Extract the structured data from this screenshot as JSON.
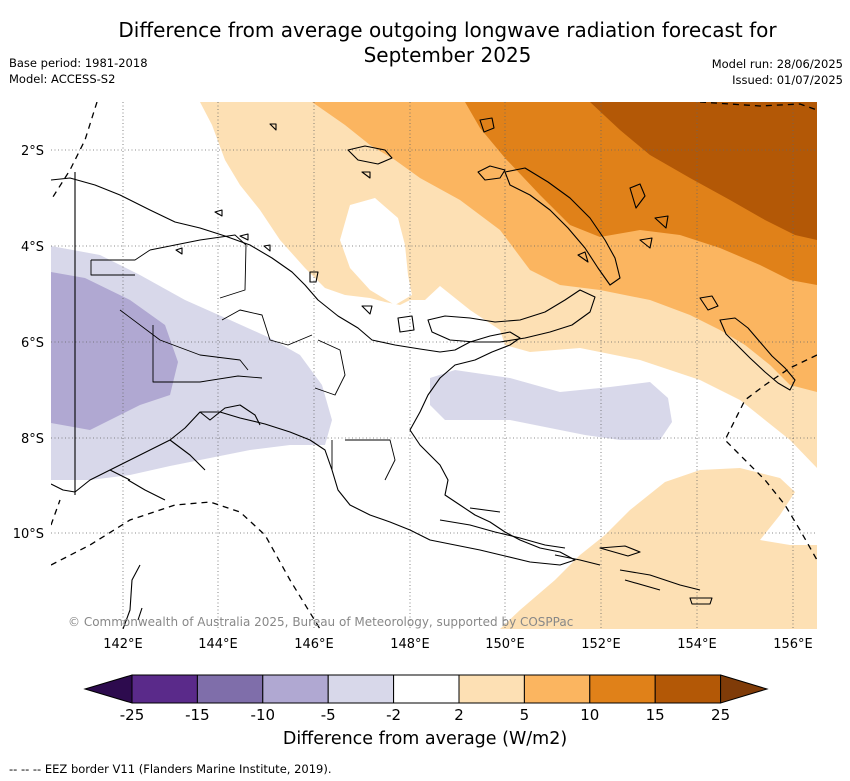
{
  "header": {
    "title_line1": "Difference from average outgoing longwave radiation forecast for",
    "title_line2": "September 2025",
    "base_period": "Base period: 1981-2018",
    "model": "Model: ACCESS-S2",
    "model_run": "Model run: 28/06/2025",
    "issued": "Issued: 01/07/2025"
  },
  "map": {
    "region": "Papua New Guinea",
    "lat_labels": [
      "2°S",
      "4°S",
      "6°S",
      "8°S",
      "10°S"
    ],
    "lon_labels": [
      "142°E",
      "144°E",
      "146°E",
      "148°E",
      "150°E",
      "152°E",
      "154°E",
      "156°E"
    ],
    "copyright": "© Commonwealth of Australia 2025, Bureau of Meteorology, supported by COSPPac"
  },
  "colorbar": {
    "title": "Difference from average (W/m2)",
    "ticks": [
      "-25",
      "-15",
      "-10",
      "-5",
      "-2",
      "2",
      "5",
      "10",
      "15",
      "25"
    ],
    "colors": {
      "below_min": "#2d0b4e",
      "b1": "#5a2a8a",
      "b2": "#7f6eaa",
      "b3": "#b0a8d2",
      "b4": "#d8d8ea",
      "b5": "#ffffff",
      "b6": "#fde0b4",
      "b7": "#fbb560",
      "b8": "#e08119",
      "b9": "#b35806",
      "above_max": "#7f3b08"
    }
  },
  "legend": {
    "eez_symbol": "-- -- --",
    "eez_text": "EEZ border V11 (Flanders Marine Institute, 2019)."
  }
}
